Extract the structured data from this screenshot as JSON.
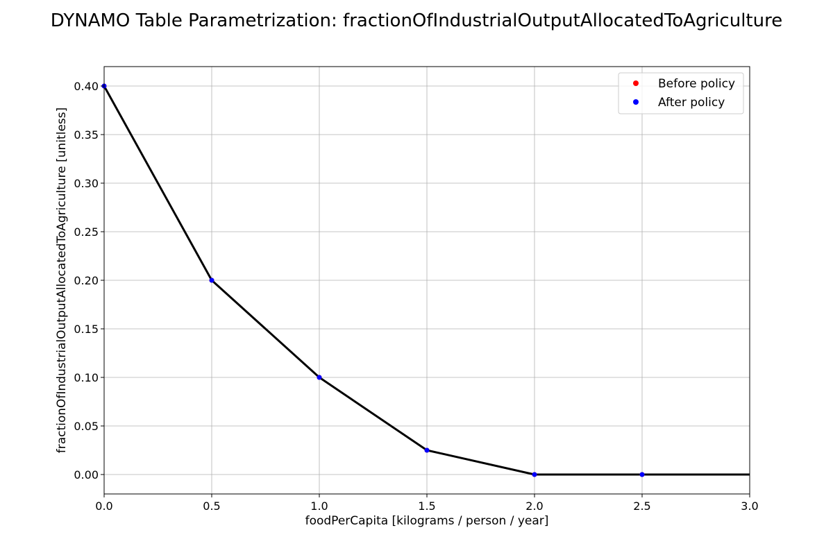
{
  "colors": {
    "before_policy": "#ff0000",
    "after_policy": "#0000ff",
    "line": "#000000",
    "grid": "#b0b0b0"
  },
  "chart_data": {
    "type": "line",
    "title": "DYNAMO Table Parametrization: fractionOfIndustrialOutputAllocatedToAgriculture",
    "xlabel": "foodPerCapita [kilograms / person / year]",
    "ylabel": "fractionOfIndustrialOutputAllocatedToAgriculture [unitless]",
    "xlim": [
      0.0,
      3.0
    ],
    "ylim": [
      -0.02,
      0.42
    ],
    "xticks": [
      0.0,
      0.5,
      1.0,
      1.5,
      2.0,
      2.5,
      3.0
    ],
    "xtick_labels": [
      "0.0",
      "0.5",
      "1.0",
      "1.5",
      "2.0",
      "2.5",
      "3.0"
    ],
    "yticks": [
      0.0,
      0.05,
      0.1,
      0.15,
      0.2,
      0.25,
      0.3,
      0.35,
      0.4
    ],
    "ytick_labels": [
      "0.00",
      "0.05",
      "0.10",
      "0.15",
      "0.20",
      "0.25",
      "0.30",
      "0.35",
      "0.40"
    ],
    "grid": true,
    "legend_position": "top-right",
    "legend": [
      {
        "label": "Before policy",
        "color": "#ff0000"
      },
      {
        "label": "After policy",
        "color": "#0000ff"
      }
    ],
    "line": {
      "x": [
        0.0,
        0.5,
        1.0,
        1.5,
        2.0,
        2.5,
        3.0
      ],
      "y": [
        0.4,
        0.2,
        0.1,
        0.025,
        0.0,
        0.0,
        0.0
      ]
    },
    "series": [
      {
        "name": "Before policy",
        "color": "#ff0000",
        "x": [
          0.0,
          0.5,
          1.0,
          1.5,
          2.0,
          2.5
        ],
        "y": [
          0.4,
          0.2,
          0.1,
          0.025,
          0.0,
          0.0
        ]
      },
      {
        "name": "After policy",
        "color": "#0000ff",
        "x": [
          0.0,
          0.5,
          1.0,
          1.5,
          2.0,
          2.5
        ],
        "y": [
          0.4,
          0.2,
          0.1,
          0.025,
          0.0,
          0.0
        ]
      }
    ]
  }
}
